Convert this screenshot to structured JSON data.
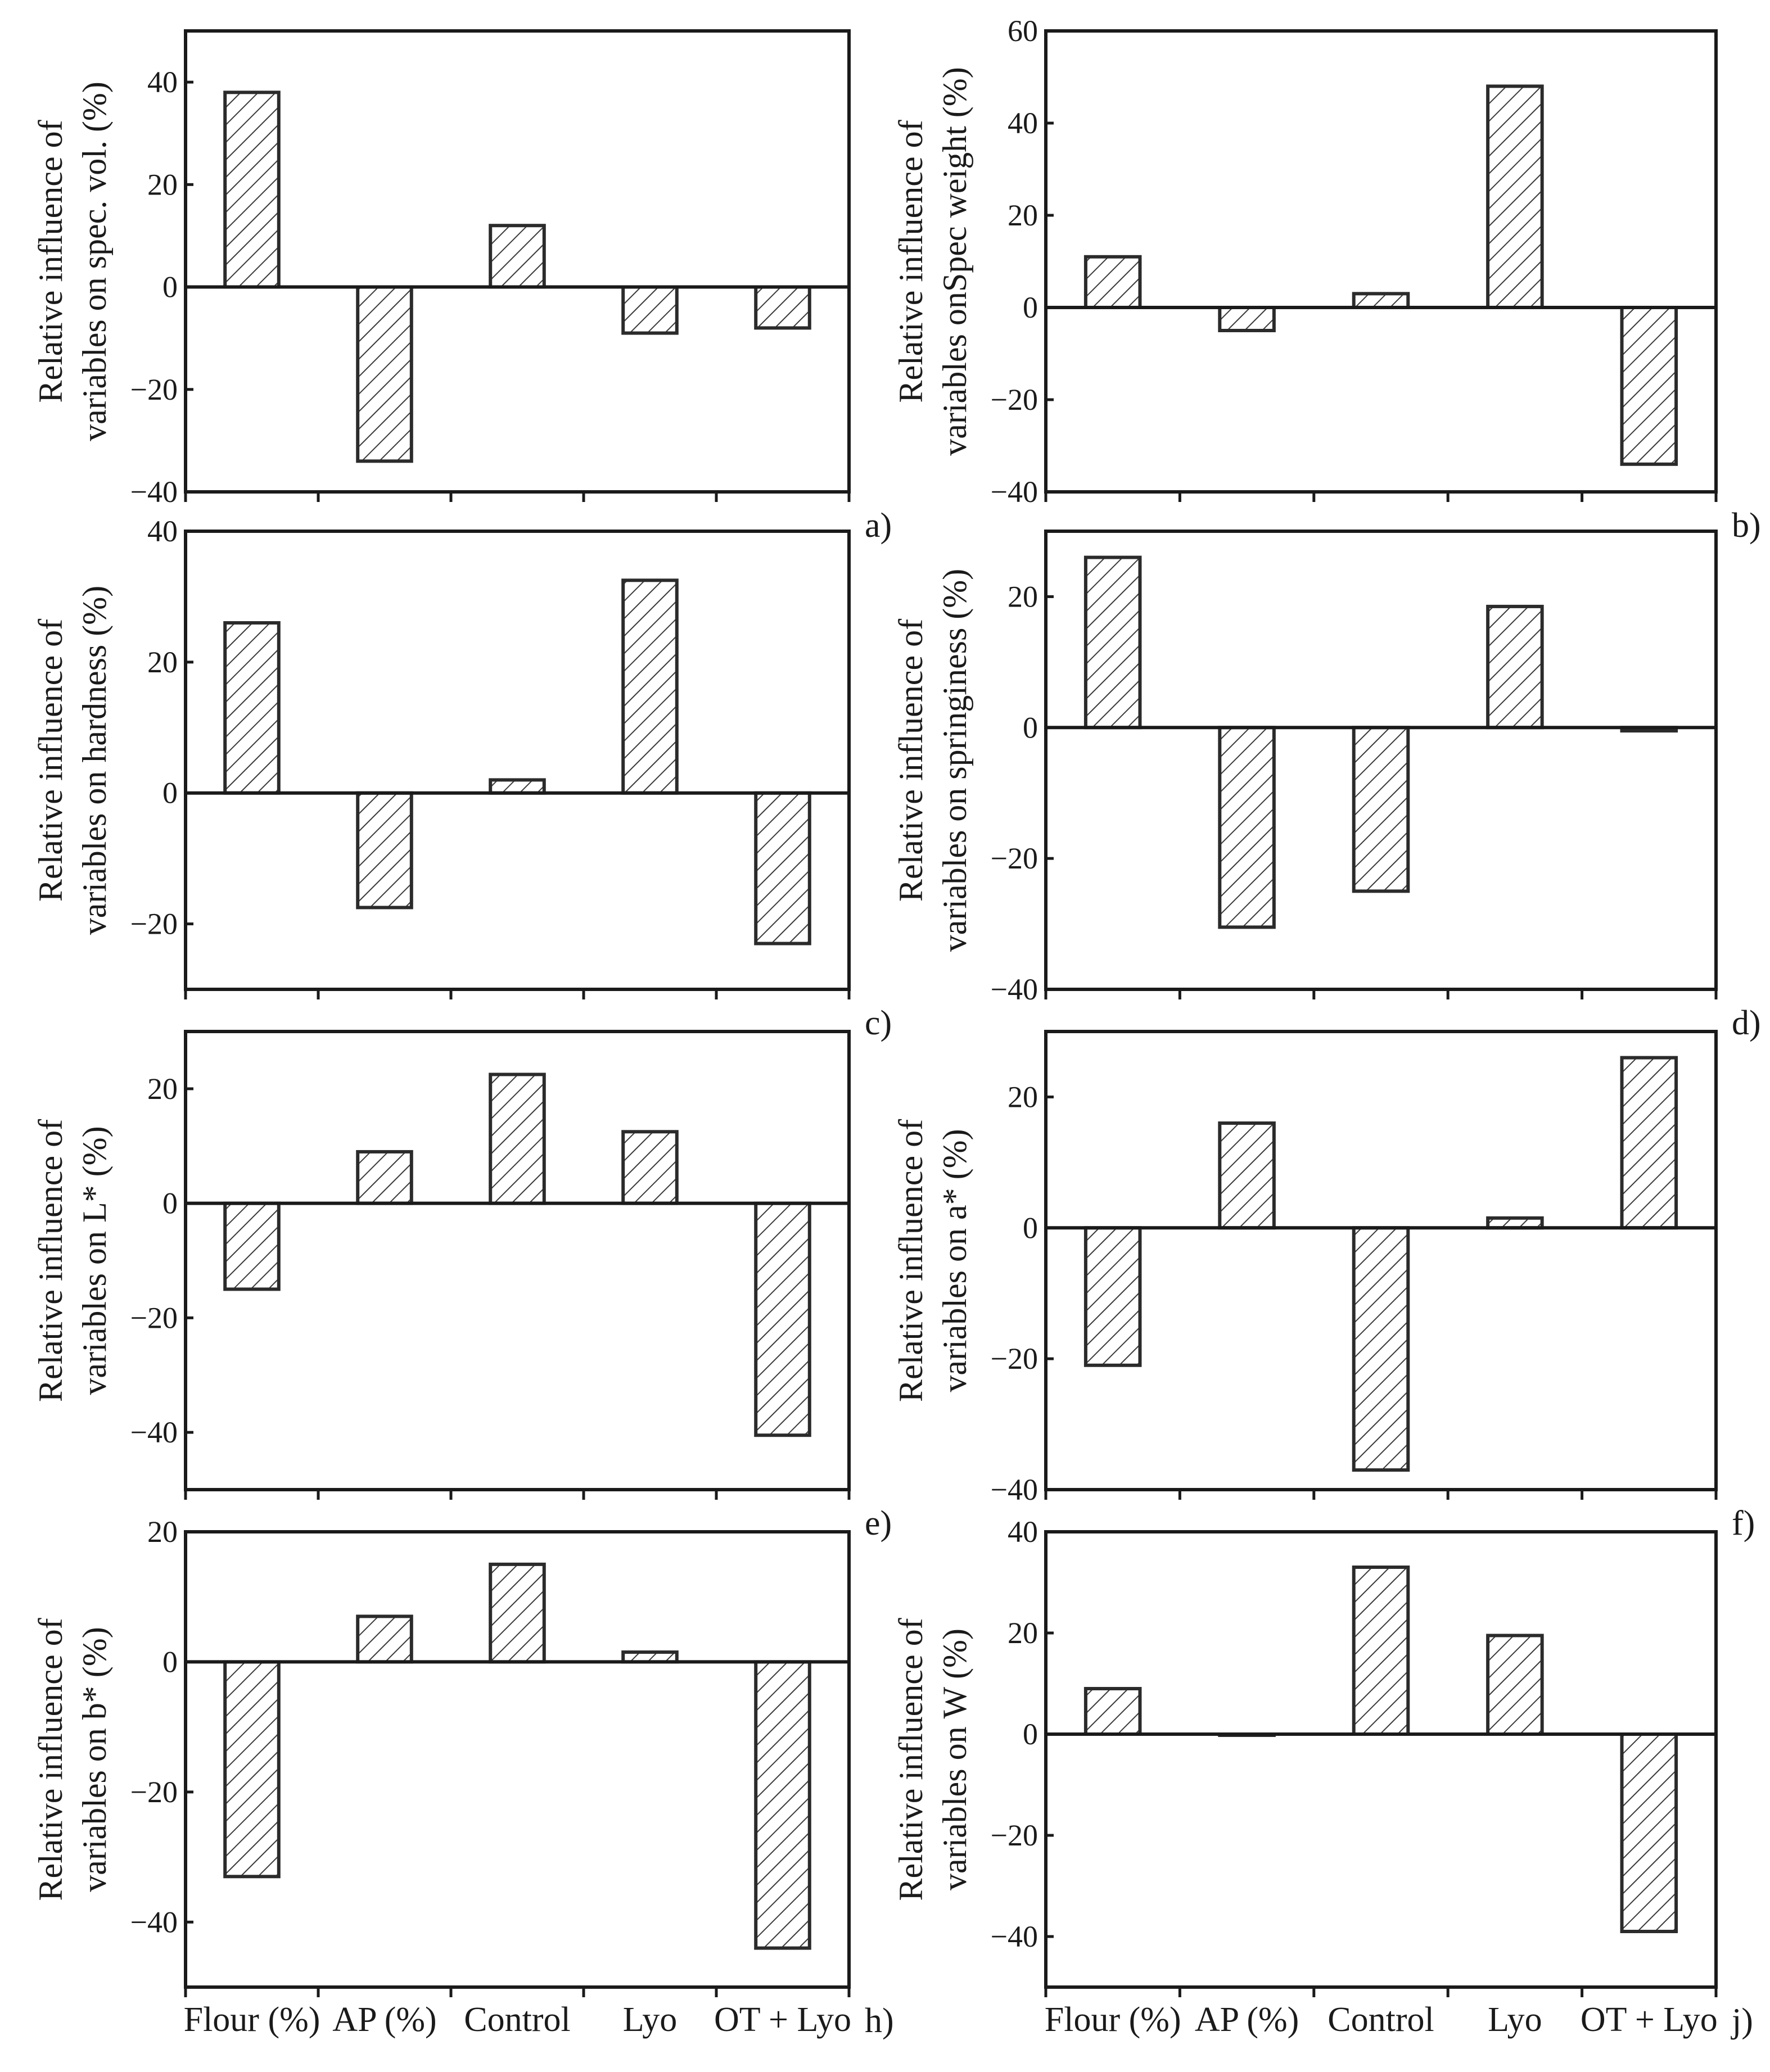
{
  "figure": {
    "categories": [
      "Flour (%)",
      "AP (%)",
      "Control",
      "Lyo",
      "OT + Lyo"
    ],
    "bar_fill": "#ffffff",
    "bar_stroke": "#2b2b2b",
    "hatch_color": "#3a3a3a"
  },
  "chart_data": [
    {
      "panel": "a)",
      "type": "bar",
      "ylabel_lines": [
        "Relative influence of",
        "variables on spec. vol. (%)"
      ],
      "ylim": [
        -40,
        50
      ],
      "yticks": [
        -40,
        -20,
        0,
        20,
        40
      ],
      "ytick_labels": [
        "−40",
        "−20",
        "0",
        "20",
        "40"
      ],
      "categories": [
        "Flour (%)",
        "AP (%)",
        "Control",
        "Lyo",
        "OT + Lyo"
      ],
      "values": [
        38,
        -34,
        12,
        -9,
        -8
      ],
      "show_category_labels": false
    },
    {
      "panel": "b)",
      "type": "bar",
      "ylabel_lines": [
        "Relative influence of",
        "variables onSpec weight (%)"
      ],
      "ylim": [
        -40,
        60
      ],
      "yticks": [
        -40,
        -20,
        0,
        20,
        40,
        60
      ],
      "ytick_labels": [
        "−40",
        "−20",
        "0",
        "20",
        "40",
        "60"
      ],
      "categories": [
        "Flour (%)",
        "AP (%)",
        "Control",
        "Lyo",
        "OT + Lyo"
      ],
      "values": [
        11,
        -5,
        3,
        48,
        -34
      ],
      "show_category_labels": false
    },
    {
      "panel": "c)",
      "type": "bar",
      "ylabel_lines": [
        "Relative influence of",
        "variables on hardness (%)"
      ],
      "ylim": [
        -30,
        40
      ],
      "yticks": [
        -20,
        0,
        20,
        40
      ],
      "ytick_labels": [
        "−20",
        "0",
        "20",
        "40"
      ],
      "categories": [
        "Flour (%)",
        "AP (%)",
        "Control",
        "Lyo",
        "OT + Lyo"
      ],
      "values": [
        26,
        -17.5,
        2,
        32.5,
        -23
      ],
      "show_category_labels": false
    },
    {
      "panel": "d)",
      "type": "bar",
      "ylabel_lines": [
        "Relative influence of",
        "variables on springiness (%)"
      ],
      "ylim": [
        -40,
        30
      ],
      "yticks": [
        -40,
        -20,
        0,
        20
      ],
      "ytick_labels": [
        "−40",
        "−20",
        "0",
        "20"
      ],
      "categories": [
        "Flour (%)",
        "AP (%)",
        "Control",
        "Lyo",
        "OT + Lyo"
      ],
      "values": [
        26,
        -30.5,
        -25,
        18.5,
        -0.5
      ],
      "show_category_labels": false
    },
    {
      "panel": "e)",
      "type": "bar",
      "ylabel_lines": [
        "Relative influence of",
        "variables on L* (%)"
      ],
      "ylim": [
        -50,
        30
      ],
      "yticks": [
        -40,
        -20,
        0,
        20
      ],
      "ytick_labels": [
        "−40",
        "−20",
        "0",
        "20"
      ],
      "categories": [
        "Flour (%)",
        "AP (%)",
        "Control",
        "Lyo",
        "OT + Lyo"
      ],
      "values": [
        -15,
        9,
        22.5,
        12.5,
        -40.5
      ],
      "show_category_labels": false
    },
    {
      "panel": "f)",
      "type": "bar",
      "ylabel_lines": [
        "Relative influence of",
        "variables on a* (%)"
      ],
      "ylim": [
        -40,
        30
      ],
      "yticks": [
        -40,
        -20,
        0,
        20
      ],
      "ytick_labels": [
        "−40",
        "−20",
        "0",
        "20"
      ],
      "categories": [
        "Flour (%)",
        "AP (%)",
        "Control",
        "Lyo",
        "OT + Lyo"
      ],
      "values": [
        -21,
        16,
        -37,
        1.5,
        26
      ],
      "show_category_labels": false
    },
    {
      "panel": "h)",
      "type": "bar",
      "ylabel_lines": [
        "Relative influence of",
        "variables on b* (%)"
      ],
      "ylim": [
        -50,
        20
      ],
      "yticks": [
        -40,
        -20,
        0,
        20
      ],
      "ytick_labels": [
        "−40",
        "−20",
        "0",
        "20"
      ],
      "categories": [
        "Flour (%)",
        "AP (%)",
        "Control",
        "Lyo",
        "OT + Lyo"
      ],
      "values": [
        -33,
        7,
        15,
        1.5,
        -44
      ],
      "show_category_labels": true
    },
    {
      "panel": "j)",
      "type": "bar",
      "ylabel_lines": [
        "Relative influence of",
        "variables on W (%)"
      ],
      "ylim": [
        -50,
        40
      ],
      "yticks": [
        -40,
        -20,
        0,
        20,
        40
      ],
      "ytick_labels": [
        "−40",
        "−20",
        "0",
        "20",
        "40"
      ],
      "categories": [
        "Flour (%)",
        "AP (%)",
        "Control",
        "Lyo",
        "OT + Lyo"
      ],
      "values": [
        9,
        0,
        33,
        19.5,
        -39
      ],
      "show_category_labels": true
    }
  ]
}
